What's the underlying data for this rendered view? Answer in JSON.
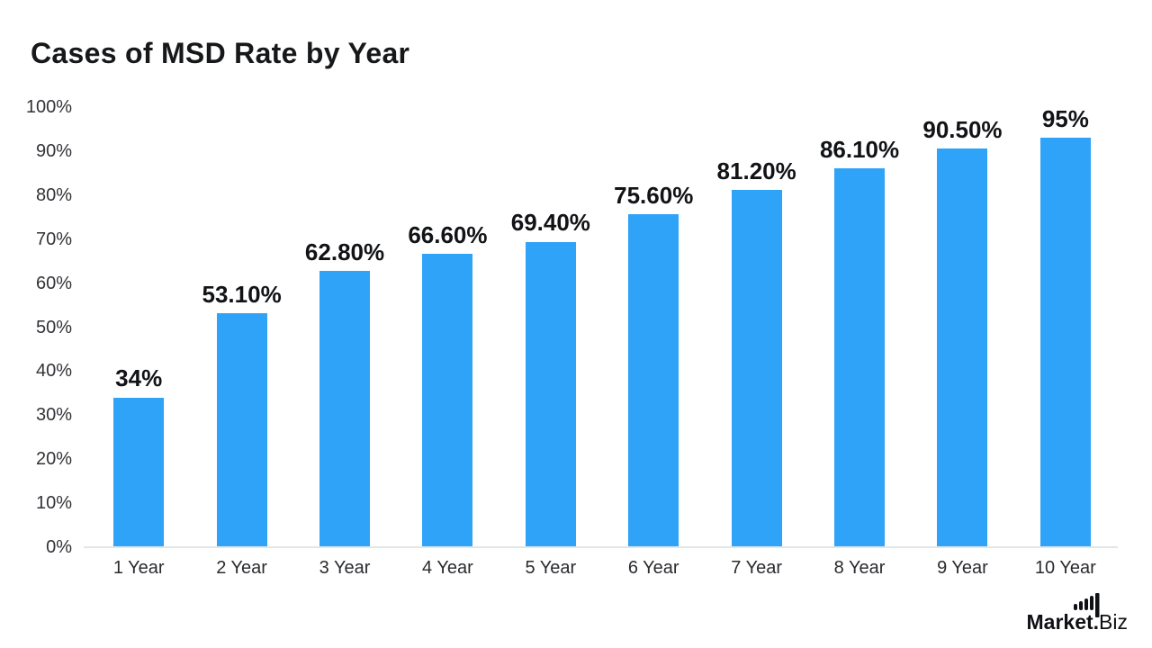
{
  "page": {
    "title": "Cases of MSD Rate by Year"
  },
  "chart_data": {
    "type": "bar",
    "title": "Cases of MSD Rate by Year",
    "categories": [
      "1 Year",
      "2 Year",
      "3 Year",
      "4 Year",
      "5 Year",
      "6 Year",
      "7 Year",
      "8 Year",
      "9 Year",
      "10 Year"
    ],
    "values": [
      34,
      53.1,
      62.8,
      66.6,
      69.4,
      75.6,
      81.2,
      86.1,
      90.5,
      95
    ],
    "value_labels": [
      "34%",
      "53.10%",
      "62.80%",
      "66.60%",
      "69.40%",
      "75.60%",
      "81.20%",
      "86.10%",
      "90.50%",
      "95%"
    ],
    "xlabel": "",
    "ylabel": "",
    "ylim": [
      0,
      100
    ],
    "y_ticks": [
      "0%",
      "10%",
      "20%",
      "30%",
      "40%",
      "50%",
      "60%",
      "70%",
      "80%",
      "90%",
      "100%"
    ],
    "grid": false,
    "legend": false,
    "bar_color": "#2EA3F8"
  },
  "branding": {
    "logo_primary": "Market.",
    "logo_secondary": "Biz",
    "logo_icon": "bar-chart-icon"
  },
  "colors": {
    "bar": "#2EA3F8",
    "title_text": "#17181a",
    "label_text": "#121316",
    "axis_text": "#323338",
    "axis_line": "#e3e5e8",
    "background": "#ffffff"
  }
}
